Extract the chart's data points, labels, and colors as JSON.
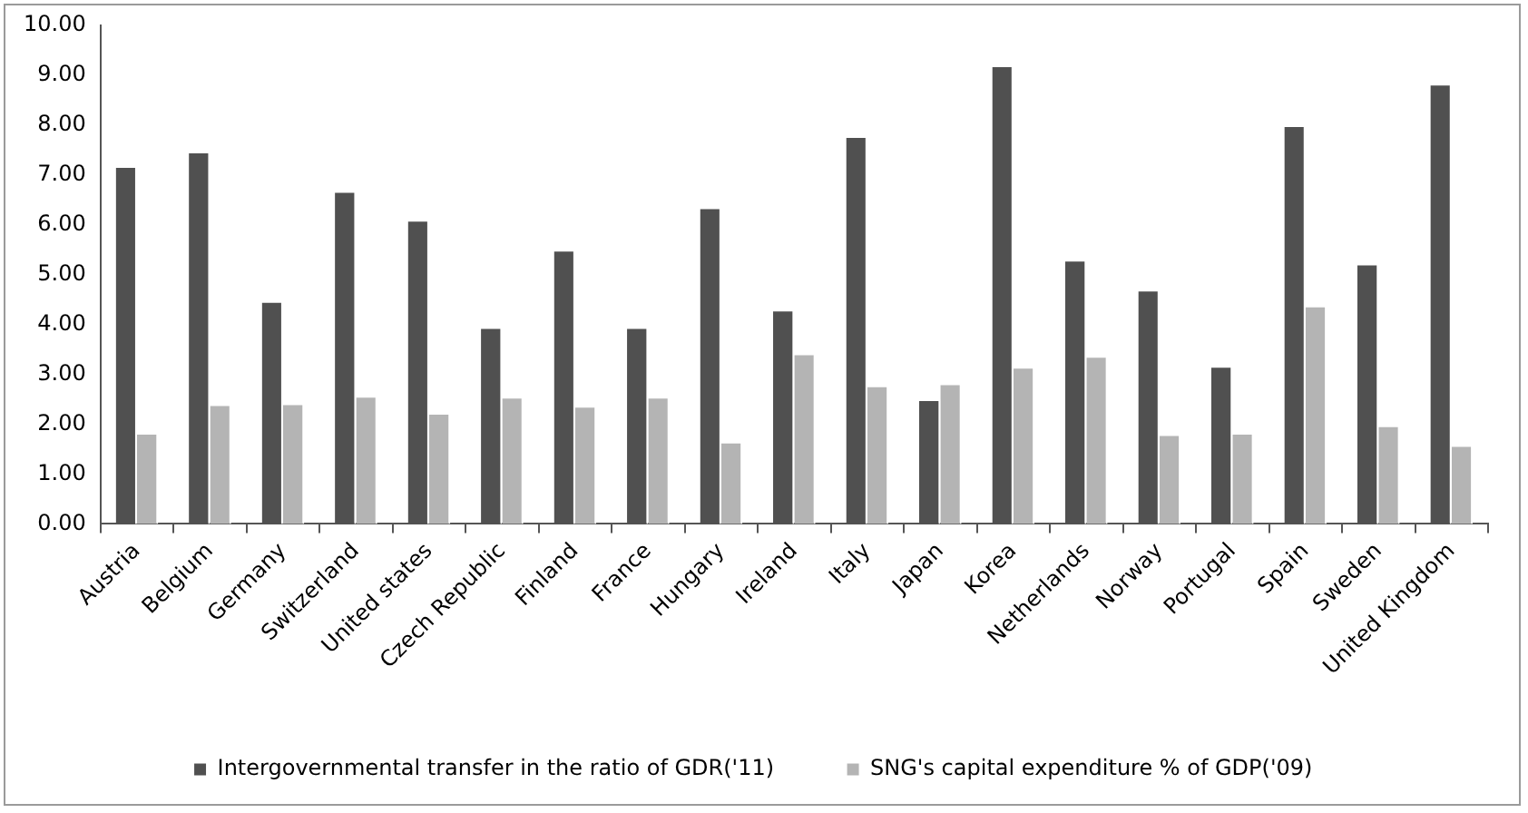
{
  "chart_data": {
    "type": "bar",
    "categories": [
      "Austria",
      "Belgium",
      "Germany",
      "Switzerland",
      "United states",
      "Czech Republic",
      "Finland",
      "France",
      "Hungary",
      "Ireland",
      "Italy",
      "Japan",
      "Korea",
      "Netherlands",
      "Norway",
      "Portugal",
      "Spain",
      "Sweden",
      "United Kingdom"
    ],
    "series": [
      {
        "name": "Intergovernmental transfer in the ratio of GDR('11)",
        "color": "#505050",
        "values": [
          7.18,
          7.47,
          4.47,
          6.68,
          6.1,
          3.95,
          5.5,
          3.95,
          6.35,
          4.3,
          7.78,
          2.5,
          9.2,
          5.3,
          4.7,
          3.17,
          8.0,
          5.22,
          8.83
        ]
      },
      {
        "name": "SNG's capital expenditure % of GDP('09)",
        "color": "#b4b4b4",
        "values": [
          1.83,
          2.4,
          2.42,
          2.57,
          2.23,
          2.55,
          2.37,
          2.55,
          1.65,
          3.42,
          2.78,
          2.82,
          3.15,
          3.37,
          1.8,
          1.83,
          4.38,
          1.98,
          1.58
        ]
      }
    ],
    "ylim": [
      0,
      10
    ],
    "yticks": [
      {
        "value": 0,
        "label": "0.00"
      },
      {
        "value": 1,
        "label": "1.00"
      },
      {
        "value": 2,
        "label": "2.00"
      },
      {
        "value": 3,
        "label": "3.00"
      },
      {
        "value": 4,
        "label": "4.00"
      },
      {
        "value": 5,
        "label": "5.00"
      },
      {
        "value": 6,
        "label": "6.00"
      },
      {
        "value": 7,
        "label": "7.00"
      },
      {
        "value": 8,
        "label": "8.00"
      },
      {
        "value": 9,
        "label": "9.00"
      },
      {
        "value": 10,
        "label": "10.00"
      }
    ],
    "grid": false,
    "legend": "bottom"
  }
}
